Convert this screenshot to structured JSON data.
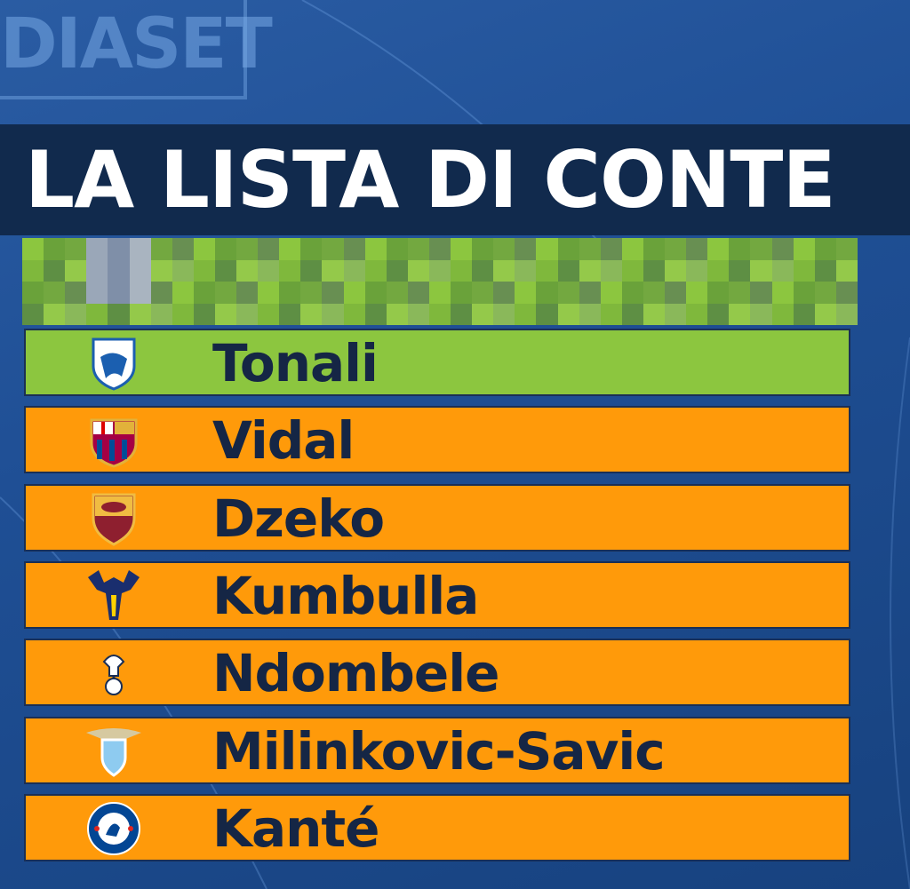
{
  "watermark": "DIASET",
  "title": "LA LISTA DI CONTE",
  "colors": {
    "title_bar": "#112a4d",
    "highlight": "#8cc63f",
    "row": "#ff9a0a",
    "text": "#152645"
  },
  "players": [
    {
      "name": "Tonali",
      "club_logo": "brescia-crest-icon",
      "highlight": true
    },
    {
      "name": "Vidal",
      "club_logo": "barcelona-crest-icon",
      "highlight": false
    },
    {
      "name": "Dzeko",
      "club_logo": "roma-crest-icon",
      "highlight": false
    },
    {
      "name": "Kumbulla",
      "club_logo": "verona-crest-icon",
      "highlight": false
    },
    {
      "name": "Ndombele",
      "club_logo": "tottenham-crest-icon",
      "highlight": false
    },
    {
      "name": "Milinkovic-Savic",
      "club_logo": "lazio-crest-icon",
      "highlight": false
    },
    {
      "name": "Kanté",
      "club_logo": "chelsea-crest-icon",
      "highlight": false
    }
  ]
}
